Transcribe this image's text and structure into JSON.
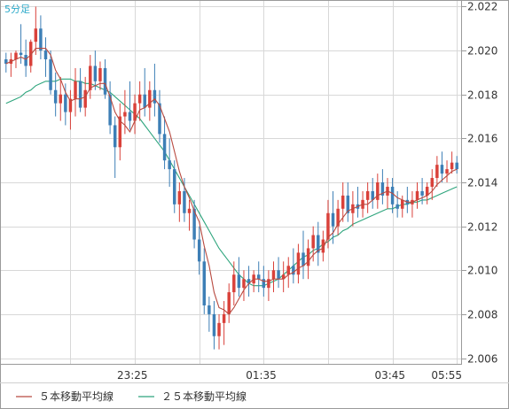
{
  "chart_data": {
    "type": "candlestick",
    "timeframe_label": "5分足",
    "x_tick_labels": [
      "23:25",
      "01:35",
      "03:45",
      "05:55"
    ],
    "y_tick_labels": [
      "2.006",
      "2.008",
      "2.010",
      "2.012",
      "2.014",
      "2.016",
      "2.018",
      "2.020",
      "2.022"
    ],
    "ylim": [
      2.0057,
      2.0223
    ],
    "grid": true,
    "legend_position": "bottom-left",
    "colors": {
      "up": "#d9413a",
      "down": "#3d7fb6",
      "ma5": "#b84a40",
      "ma25": "#2ea57d",
      "grid": "#d8d8d8",
      "frame": "#9a9a9a"
    },
    "legend": [
      {
        "name": "５本移動平均線",
        "color": "#b84a40"
      },
      {
        "name": "２５本移動平均線",
        "color": "#2ea57d"
      }
    ],
    "candles": [
      [
        2.0196,
        2.0199,
        2.019,
        2.0194
      ],
      [
        2.0194,
        2.0199,
        2.0188,
        2.0196
      ],
      [
        2.0196,
        2.02,
        2.0192,
        2.0199
      ],
      [
        2.0199,
        2.0212,
        2.0194,
        2.0198
      ],
      [
        2.0198,
        2.0205,
        2.0188,
        2.0193
      ],
      [
        2.0193,
        2.0205,
        2.019,
        2.0204
      ],
      [
        2.0204,
        2.022,
        2.0198,
        2.021
      ],
      [
        2.021,
        2.0216,
        2.0196,
        2.02
      ],
      [
        2.02,
        2.0206,
        2.0188,
        2.0196
      ],
      [
        2.0196,
        2.02,
        2.018,
        2.0182
      ],
      [
        2.0182,
        2.019,
        2.017,
        2.0176
      ],
      [
        2.0176,
        2.0188,
        2.0168,
        2.018
      ],
      [
        2.018,
        2.0185,
        2.0166,
        2.0172
      ],
      [
        2.0172,
        2.0182,
        2.0164,
        2.0178
      ],
      [
        2.0178,
        2.0192,
        2.017,
        2.0186
      ],
      [
        2.0186,
        2.0192,
        2.0172,
        2.0174
      ],
      [
        2.0174,
        2.0188,
        2.017,
        2.0182
      ],
      [
        2.0182,
        2.0198,
        2.0178,
        2.0193
      ],
      [
        2.0193,
        2.02,
        2.0182,
        2.0186
      ],
      [
        2.0186,
        2.0195,
        2.0182,
        2.0192
      ],
      [
        2.0192,
        2.0196,
        2.0178,
        2.018
      ],
      [
        2.018,
        2.0186,
        2.0162,
        2.0166
      ],
      [
        2.0166,
        2.017,
        2.0142,
        2.0156
      ],
      [
        2.0156,
        2.0176,
        2.015,
        2.017
      ],
      [
        2.017,
        2.0182,
        2.0162,
        2.0172
      ],
      [
        2.0172,
        2.0186,
        2.0164,
        2.0168
      ],
      [
        2.0168,
        2.018,
        2.0162,
        2.0176
      ],
      [
        2.0176,
        2.0186,
        2.0168,
        2.018
      ],
      [
        2.018,
        2.0192,
        2.017,
        2.0174
      ],
      [
        2.0174,
        2.0186,
        2.0168,
        2.0182
      ],
      [
        2.0182,
        2.0194,
        2.017,
        2.0176
      ],
      [
        2.0176,
        2.0182,
        2.0158,
        2.0162
      ],
      [
        2.0162,
        2.017,
        2.0146,
        2.015
      ],
      [
        2.015,
        2.016,
        2.0138,
        2.0146
      ],
      [
        2.0146,
        2.015,
        2.0126,
        2.013
      ],
      [
        2.013,
        2.014,
        2.0122,
        2.0136
      ],
      [
        2.0136,
        2.0142,
        2.0122,
        2.0126
      ],
      [
        2.0126,
        2.0132,
        2.0118,
        2.0128
      ],
      [
        2.0128,
        2.0132,
        2.011,
        2.0114
      ],
      [
        2.0114,
        2.012,
        2.0098,
        2.0104
      ],
      [
        2.0104,
        2.011,
        2.008,
        2.0084
      ],
      [
        2.0084,
        2.0088,
        2.0072,
        2.008
      ],
      [
        2.008,
        2.0086,
        2.0064,
        2.007
      ],
      [
        2.007,
        2.008,
        2.0064,
        2.0076
      ],
      [
        2.0076,
        2.0086,
        2.0066,
        2.008
      ],
      [
        2.008,
        2.0094,
        2.0076,
        2.009
      ],
      [
        2.009,
        2.0104,
        2.0084,
        2.0098
      ],
      [
        2.0098,
        2.0106,
        2.0088,
        2.0092
      ],
      [
        2.0092,
        2.01,
        2.0086,
        2.0096
      ],
      [
        2.0096,
        2.0102,
        2.0088,
        2.0094
      ],
      [
        2.0094,
        2.01,
        2.009,
        2.0098
      ],
      [
        2.0098,
        2.0104,
        2.009,
        2.0096
      ],
      [
        2.0096,
        2.0102,
        2.0088,
        2.0092
      ],
      [
        2.0092,
        2.01,
        2.0086,
        2.0096
      ],
      [
        2.0096,
        2.0104,
        2.009,
        2.01
      ],
      [
        2.01,
        2.0106,
        2.0092,
        2.0096
      ],
      [
        2.0096,
        2.0104,
        2.009,
        2.0098
      ],
      [
        2.0098,
        2.0106,
        2.0092,
        2.0102
      ],
      [
        2.0102,
        2.011,
        2.0094,
        2.0098
      ],
      [
        2.0098,
        2.0112,
        2.0094,
        2.0108
      ],
      [
        2.0108,
        2.0118,
        2.0096,
        2.0102
      ],
      [
        2.0102,
        2.0114,
        2.0096,
        2.011
      ],
      [
        2.011,
        2.012,
        2.0104,
        2.0116
      ],
      [
        2.0116,
        2.0122,
        2.0102,
        2.0108
      ],
      [
        2.0108,
        2.0118,
        2.0104,
        2.0114
      ],
      [
        2.0114,
        2.0132,
        2.011,
        2.0126
      ],
      [
        2.0126,
        2.0136,
        2.0112,
        2.012
      ],
      [
        2.012,
        2.0132,
        2.0116,
        2.0128
      ],
      [
        2.0128,
        2.014,
        2.0122,
        2.0134
      ],
      [
        2.0134,
        2.014,
        2.0122,
        2.0126
      ],
      [
        2.0126,
        2.0136,
        2.012,
        2.013
      ],
      [
        2.013,
        2.0138,
        2.0124,
        2.0128
      ],
      [
        2.0128,
        2.0136,
        2.0124,
        2.0132
      ],
      [
        2.0132,
        2.014,
        2.0126,
        2.0136
      ],
      [
        2.0136,
        2.0142,
        2.0128,
        2.0132
      ],
      [
        2.0132,
        2.0144,
        2.0128,
        2.014
      ],
      [
        2.014,
        2.0146,
        2.013,
        2.0134
      ],
      [
        2.0134,
        2.0142,
        2.0128,
        2.0138
      ],
      [
        2.0138,
        2.0142,
        2.0126,
        2.013
      ],
      [
        2.013,
        2.0136,
        2.0124,
        2.0128
      ],
      [
        2.0128,
        2.0134,
        2.0124,
        2.0132
      ],
      [
        2.0132,
        2.0138,
        2.0126,
        2.013
      ],
      [
        2.013,
        2.0136,
        2.0124,
        2.0132
      ],
      [
        2.0132,
        2.014,
        2.0128,
        2.0136
      ],
      [
        2.0136,
        2.0142,
        2.013,
        2.0134
      ],
      [
        2.0134,
        2.014,
        2.013,
        2.0138
      ],
      [
        2.0138,
        2.0146,
        2.0132,
        2.0142
      ],
      [
        2.0142,
        2.0152,
        2.0138,
        2.0148
      ],
      [
        2.0148,
        2.0154,
        2.014,
        2.0144
      ],
      [
        2.0144,
        2.015,
        2.014,
        2.0146
      ],
      [
        2.0146,
        2.0154,
        2.0144,
        2.0149
      ],
      [
        2.0149,
        2.0152,
        2.0144,
        2.0146
      ]
    ],
    "ma5": [
      2.0194,
      2.0195,
      2.0196,
      2.0197,
      2.0196,
      2.0198,
      2.0201,
      2.0201,
      2.0201,
      2.0198,
      2.0191,
      2.0187,
      2.0181,
      2.0177,
      2.0178,
      2.0178,
      2.0179,
      2.0183,
      2.0184,
      2.0185,
      2.0185,
      2.0179,
      2.0172,
      2.0168,
      2.0166,
      2.0163,
      2.0168,
      2.0173,
      2.0174,
      2.0176,
      2.0178,
      2.0175,
      2.0169,
      2.0163,
      2.0154,
      2.0145,
      2.0138,
      2.0133,
      2.0127,
      2.0122,
      2.0111,
      2.0102,
      2.009,
      2.0083,
      2.0082,
      2.008,
      2.0083,
      2.0087,
      2.0091,
      2.0094,
      2.0096,
      2.0096,
      2.0095,
      2.0095,
      2.0096,
      2.0096,
      2.0096,
      2.0098,
      2.0099,
      2.0101,
      2.0102,
      2.0104,
      2.0107,
      2.0109,
      2.011,
      2.0115,
      2.0117,
      2.0121,
      2.0124,
      2.0127,
      2.0128,
      2.0129,
      2.013,
      2.013,
      2.0132,
      2.0134,
      2.0135,
      2.0136,
      2.0135,
      2.0133,
      2.0132,
      2.0131,
      2.0131,
      2.0132,
      2.0133,
      2.0134,
      2.0136,
      2.0139,
      2.0141,
      2.0143,
      2.0145,
      2.0146
    ],
    "ma25": [
      2.0176,
      2.0177,
      2.0178,
      2.0179,
      2.0181,
      2.0182,
      2.0184,
      2.0185,
      2.0186,
      2.0186,
      2.0186,
      2.0187,
      2.0187,
      2.0187,
      2.0186,
      2.0186,
      2.0185,
      2.0185,
      2.0184,
      2.0183,
      2.0182,
      2.0181,
      2.0179,
      2.0177,
      2.0175,
      2.0173,
      2.0171,
      2.0169,
      2.0166,
      2.0163,
      2.016,
      2.0157,
      2.0154,
      2.015,
      2.0146,
      2.0142,
      2.0138,
      2.0134,
      2.013,
      2.0126,
      2.0122,
      2.0118,
      2.0114,
      2.011,
      2.0107,
      2.0104,
      2.0101,
      2.0098,
      2.0096,
      2.0094,
      2.0093,
      2.0093,
      2.0093,
      2.0094,
      2.0095,
      2.0096,
      2.0098,
      2.01,
      2.0102,
      2.0104,
      2.0106,
      2.0107,
      2.0109,
      2.011,
      2.0112,
      2.0113,
      2.0115,
      2.0116,
      2.0118,
      2.0119,
      2.0121,
      2.0122,
      2.0123,
      2.0124,
      2.0125,
      2.0126,
      2.0127,
      2.0128,
      2.0128,
      2.0129,
      2.013,
      2.013,
      2.0131,
      2.0131,
      2.0132,
      2.0132,
      2.0133,
      2.0134,
      2.0135,
      2.0136,
      2.0137,
      2.0138
    ]
  }
}
